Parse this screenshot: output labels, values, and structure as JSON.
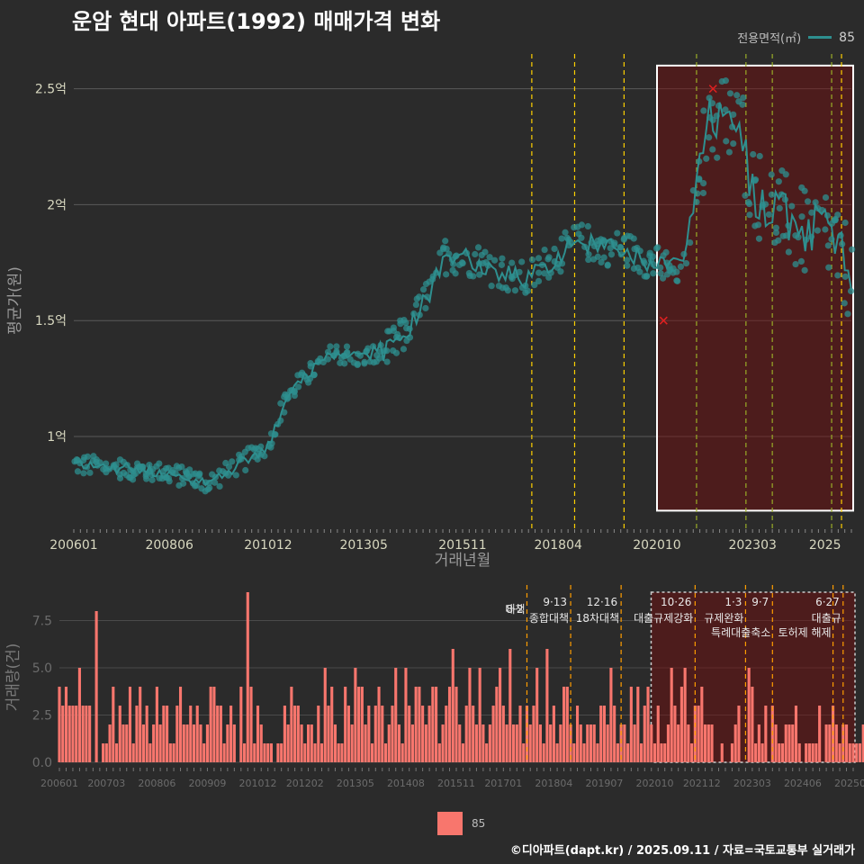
{
  "title": "운암 현대 아파트(1992) 매매가격 변화",
  "legend_top": {
    "title": "전용면적(㎡)",
    "item": "85",
    "color": "#2e8f8f"
  },
  "legend_bottom": {
    "item": "85",
    "color": "#f8766d"
  },
  "credit": "©디아파트(dapt.kr) / 2025.09.11 / 자료=국토교통부 실거래가",
  "chart_data": [
    {
      "type": "line",
      "xlabel": "거래년월",
      "ylabel": "평균가(원)",
      "x_range": [
        "2006-01",
        "2025-09"
      ],
      "ylim": [
        0.6,
        2.65
      ],
      "y_ticks": [
        {
          "v": 1.0,
          "label": "1억"
        },
        {
          "v": 1.5,
          "label": "1.5억"
        },
        {
          "v": 2.0,
          "label": "2억"
        },
        {
          "v": 2.5,
          "label": "2.5억"
        }
      ],
      "x_ticks": [
        "200601",
        "200806",
        "201012",
        "201305",
        "201511",
        "201804",
        "202010",
        "202303",
        "2025"
      ],
      "series": [
        {
          "name": "85",
          "color": "#2e8f8f"
        }
      ],
      "anchors": [
        {
          "x": "2006-01",
          "y": 0.88
        },
        {
          "x": "2007-06",
          "y": 0.86
        },
        {
          "x": "2008-06",
          "y": 0.84
        },
        {
          "x": "2009-06",
          "y": 0.8
        },
        {
          "x": "2010-01",
          "y": 0.86
        },
        {
          "x": "2010-12",
          "y": 0.96
        },
        {
          "x": "2011-06",
          "y": 1.18
        },
        {
          "x": "2012-01",
          "y": 1.28
        },
        {
          "x": "2012-08",
          "y": 1.36
        },
        {
          "x": "2013-05",
          "y": 1.34
        },
        {
          "x": "2014-01",
          "y": 1.38
        },
        {
          "x": "2014-06",
          "y": 1.45
        },
        {
          "x": "2015-01",
          "y": 1.62
        },
        {
          "x": "2015-06",
          "y": 1.78
        },
        {
          "x": "2015-11",
          "y": 1.78
        },
        {
          "x": "2016-06",
          "y": 1.74
        },
        {
          "x": "2017-06",
          "y": 1.67
        },
        {
          "x": "2018-04",
          "y": 1.78
        },
        {
          "x": "2018-10",
          "y": 1.84
        },
        {
          "x": "2019-06",
          "y": 1.82
        },
        {
          "x": "2020-01",
          "y": 1.8
        },
        {
          "x": "2020-10",
          "y": 1.74
        },
        {
          "x": "2021-06",
          "y": 1.72
        },
        {
          "x": "2021-11",
          "y": 2.18
        },
        {
          "x": "2022-02",
          "y": 2.36
        },
        {
          "x": "2022-06",
          "y": 2.38
        },
        {
          "x": "2022-12",
          "y": 2.3
        },
        {
          "x": "2023-03",
          "y": 2.06
        },
        {
          "x": "2023-10",
          "y": 1.98
        },
        {
          "x": "2024-06",
          "y": 1.88
        },
        {
          "x": "2025-01",
          "y": 1.9
        },
        {
          "x": "2025-08",
          "y": 1.72
        }
      ],
      "highlight_points": [
        {
          "x": "2022-03",
          "y": 2.5
        },
        {
          "x": "2020-12",
          "y": 1.5
        }
      ],
      "highlight_region": {
        "from": "2020-10",
        "to": "2025-09",
        "y_from": 0.68,
        "y_to": 2.6
      }
    },
    {
      "type": "bar",
      "ylabel": "거래량(건)",
      "ylim": [
        0,
        9
      ],
      "y_ticks": [
        {
          "v": 0,
          "label": "0.0"
        },
        {
          "v": 2.5,
          "label": "2.5"
        },
        {
          "v": 5,
          "label": "5.0"
        },
        {
          "v": 7.5,
          "label": "7.5"
        }
      ],
      "x_ticks": [
        "200601",
        "200703",
        "200806",
        "200909",
        "201012",
        "201202",
        "201305",
        "201408",
        "201511",
        "201701",
        "201804",
        "201907",
        "202010",
        "202112",
        "202303",
        "202406",
        "202509"
      ],
      "series": [
        {
          "name": "85",
          "color": "#f8766d"
        }
      ],
      "counts": [
        4,
        3,
        4,
        3,
        3,
        3,
        5,
        3,
        3,
        3,
        0,
        8,
        0,
        1,
        1,
        2,
        4,
        1,
        3,
        2,
        2,
        4,
        1,
        3,
        4,
        2,
        3,
        1,
        2,
        4,
        2,
        3,
        3,
        1,
        1,
        3,
        4,
        2,
        2,
        3,
        2,
        3,
        2,
        1,
        2,
        4,
        4,
        3,
        3,
        1,
        2,
        3,
        2,
        0,
        4,
        1,
        9,
        4,
        1,
        3,
        2,
        1,
        1,
        1,
        0,
        1,
        1,
        3,
        2,
        4,
        3,
        3,
        2,
        1,
        2,
        2,
        1,
        3,
        1,
        5,
        3,
        4,
        2,
        1,
        1,
        4,
        3,
        2,
        5,
        4,
        4,
        2,
        3,
        1,
        3,
        4,
        3,
        1,
        2,
        3,
        5,
        2,
        1,
        5,
        3,
        2,
        4,
        4,
        3,
        2,
        3,
        4,
        4,
        1,
        2,
        3,
        4,
        6,
        4,
        2,
        1,
        3,
        5,
        3,
        2,
        5,
        2,
        1,
        2,
        3,
        4,
        5,
        3,
        2,
        6,
        2,
        2,
        3,
        1,
        3,
        2,
        3,
        5,
        2,
        1,
        6,
        2,
        3,
        1,
        2,
        4,
        4,
        2,
        1,
        3,
        2,
        1,
        2,
        2,
        2,
        1,
        3,
        3,
        2,
        5,
        3,
        1,
        2,
        2,
        1,
        4,
        2,
        4,
        1,
        3,
        4,
        2,
        1,
        3,
        1,
        1,
        2,
        5,
        3,
        2,
        4,
        5,
        2,
        1,
        3,
        3,
        4,
        2,
        2,
        2,
        0,
        0,
        1,
        0,
        0,
        1,
        2,
        3,
        0,
        0,
        5,
        4,
        1,
        2,
        1,
        3,
        0,
        3,
        2,
        1,
        1,
        2,
        2,
        2,
        3,
        1,
        0,
        1,
        1,
        1,
        1,
        3,
        0,
        2,
        2,
        3,
        2,
        1,
        2,
        2,
        1,
        1,
        1,
        1,
        2,
        1,
        3,
        0,
        1,
        0,
        1,
        2,
        0,
        1,
        0,
        1,
        1,
        2,
        2,
        2,
        7,
        5,
        3,
        1,
        1,
        2,
        2,
        1,
        3,
        1,
        2,
        1,
        1,
        8,
        3,
        2,
        2,
        1,
        1,
        0,
        4,
        1,
        2,
        1,
        3,
        1,
        1,
        0,
        1,
        2,
        3,
        1,
        1,
        1,
        1,
        1,
        1,
        2,
        2,
        1,
        1,
        2,
        1,
        3,
        1,
        2,
        1,
        1,
        3,
        2,
        1,
        1,
        1,
        2,
        1,
        3,
        1,
        1,
        2,
        2,
        3,
        1,
        3,
        1,
        1,
        2,
        1,
        3,
        3,
        1,
        1
      ]
    }
  ],
  "events": [
    {
      "date": "2017-08",
      "date_label": "8·2",
      "label": "대책",
      "color": "#ffd000"
    },
    {
      "date": "2018-09",
      "date_label": "9·13",
      "label": "종합대책",
      "color": "#ffd000"
    },
    {
      "date": "2019-12",
      "date_label": "12·16",
      "label": "18차대책",
      "color": "#ffd000"
    },
    {
      "date": "2021-10",
      "date_label": "10·26",
      "label": "대출규제강화",
      "color": "#9aad27"
    },
    {
      "date": "2023-01",
      "date_label": "1·3",
      "label": "규제완화",
      "color": "#9aad27"
    },
    {
      "date": "2023-09",
      "date_label": "9·7",
      "label": "특례대출축소",
      "color": "#9aad27"
    },
    {
      "date": "2025-03",
      "date_label": "",
      "label": "토허제 해제",
      "color": "#9aad27"
    },
    {
      "date": "2025-06",
      "date_label": "6·27",
      "label": "대출규",
      "color": "#ffd000"
    }
  ]
}
